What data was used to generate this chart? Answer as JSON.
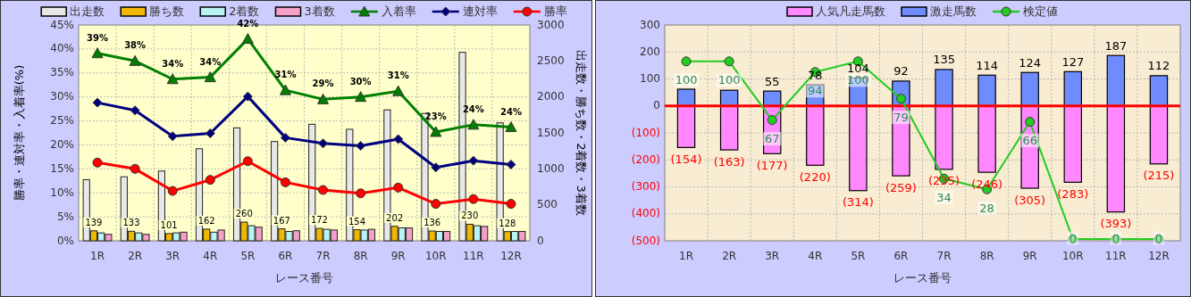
{
  "chart_data": [
    {
      "type": "bar",
      "categories": [
        "1R",
        "2R",
        "3R",
        "4R",
        "5R",
        "6R",
        "7R",
        "8R",
        "9R",
        "10R",
        "11R",
        "12R"
      ],
      "xlabel": "レース番号",
      "ylabel": "勝率・連対率・入着率(%)",
      "y2label": "出走数・勝ち数・2着数・3着数",
      "ylim": [
        0,
        45
      ],
      "yticks": [
        {
          "value": 0,
          "label": "0%"
        },
        {
          "value": 5,
          "label": "5%"
        },
        {
          "value": 10,
          "label": "10%"
        },
        {
          "value": 15,
          "label": "15%"
        },
        {
          "value": 20,
          "label": "20%"
        },
        {
          "value": 25,
          "label": "25%"
        },
        {
          "value": 30,
          "label": "30%"
        },
        {
          "value": 35,
          "label": "35%"
        },
        {
          "value": 40,
          "label": "40%"
        },
        {
          "value": 45,
          "label": "45%"
        }
      ],
      "y2lim": [
        0,
        3000
      ],
      "y2ticks": [
        0,
        500,
        1000,
        1500,
        2000,
        2500,
        3000
      ],
      "grid": true,
      "legend": "top",
      "series": [
        {
          "name": "出走数",
          "axis": "y2",
          "color": "#e8e8e8",
          "values": [
            850,
            890,
            970,
            1280,
            1570,
            1380,
            1620,
            1550,
            1820,
            1770,
            2620,
            1640
          ]
        },
        {
          "name": "勝ち数",
          "axis": "y2",
          "color": "#f0b800",
          "values": [
            139,
            133,
            101,
            162,
            260,
            167,
            172,
            154,
            202,
            136,
            230,
            128
          ],
          "value_labels": [
            "139",
            "133",
            "101",
            "162",
            "260",
            "167",
            "172",
            "154",
            "202",
            "136",
            "230",
            "128"
          ]
        },
        {
          "name": "2着数",
          "axis": "y2",
          "color": "#b8f4f4",
          "values": [
            110,
            110,
            110,
            120,
            210,
            130,
            160,
            150,
            180,
            130,
            210,
            130
          ]
        },
        {
          "name": "3着数",
          "axis": "y2",
          "color": "#f4a0c8",
          "values": [
            90,
            90,
            120,
            150,
            190,
            140,
            150,
            160,
            180,
            130,
            200,
            130
          ]
        },
        {
          "name": "入着率",
          "type": "line",
          "axis": "y",
          "color": "#008000",
          "marker": "triangle",
          "values": [
            39.1,
            37.5,
            33.7,
            34.1,
            42.1,
            31.4,
            29.5,
            30.0,
            31.2,
            22.7,
            24.2,
            23.7
          ],
          "value_labels": [
            "39%",
            "38%",
            "34%",
            "34%",
            "42%",
            "31%",
            "29%",
            "30%",
            "31%",
            "23%",
            "24%",
            "24%"
          ]
        },
        {
          "name": "連対率",
          "type": "line",
          "axis": "y",
          "color": "#000080",
          "marker": "diamond",
          "values": [
            28.8,
            27.2,
            21.8,
            22.4,
            30.1,
            21.5,
            20.3,
            19.8,
            21.2,
            15.3,
            16.7,
            15.9
          ]
        },
        {
          "name": "勝率",
          "type": "line",
          "axis": "y",
          "color": "#ff0000",
          "marker": "circle",
          "values": [
            16.3,
            15.0,
            10.4,
            12.7,
            16.6,
            12.2,
            10.6,
            9.9,
            11.1,
            7.7,
            8.7,
            7.7
          ]
        }
      ]
    },
    {
      "type": "bar",
      "stacked": true,
      "categories": [
        "1R",
        "2R",
        "3R",
        "4R",
        "5R",
        "6R",
        "7R",
        "8R",
        "9R",
        "10R",
        "11R",
        "12R"
      ],
      "xlabel": "レース番号",
      "ylim": [
        -500,
        300
      ],
      "yticks": [
        {
          "value": -500,
          "label": "(500)"
        },
        {
          "value": -400,
          "label": "(400)"
        },
        {
          "value": -300,
          "label": "(300)"
        },
        {
          "value": -200,
          "label": "(200)"
        },
        {
          "value": -100,
          "label": "(100)"
        },
        0,
        100,
        200,
        300
      ],
      "y2lim": [
        -1,
        120.5
      ],
      "grid": true,
      "legend": "top",
      "ref_lines": [
        {
          "axis": "y",
          "value": 0,
          "color": "#ff0000"
        }
      ],
      "series": [
        {
          "name": "人気凡走馬数",
          "color": "#ff88ff",
          "values": [
            -154,
            -163,
            -177,
            -220,
            -314,
            -259,
            -235,
            -246,
            -305,
            -283,
            -393,
            -215
          ],
          "value_labels": [
            "(154)",
            "(163)",
            "(177)",
            "(220)",
            "(314)",
            "(259)",
            "(235)",
            "(246)",
            "(305)",
            "(283)",
            "(393)",
            "(215)"
          ]
        },
        {
          "name": "激走馬数",
          "color": "#6f8cff",
          "values": [
            62,
            58,
            55,
            78,
            104,
            92,
            135,
            114,
            124,
            127,
            187,
            112
          ],
          "value_labels": [
            null,
            null,
            "55",
            "78",
            "104",
            "92",
            "135",
            "114",
            "124",
            "127",
            "187",
            "112"
          ]
        },
        {
          "name": "検定値",
          "type": "line",
          "axis": "y2",
          "color": "#22cc22",
          "marker": "circle",
          "values": [
            100,
            100,
            67,
            94,
            100,
            79,
            34,
            28,
            66,
            0,
            0,
            0
          ],
          "value_labels": [
            "100",
            "100",
            "67",
            "94",
            "100",
            "79",
            "34",
            "28",
            "66",
            "0",
            "0",
            "0"
          ]
        }
      ]
    }
  ]
}
